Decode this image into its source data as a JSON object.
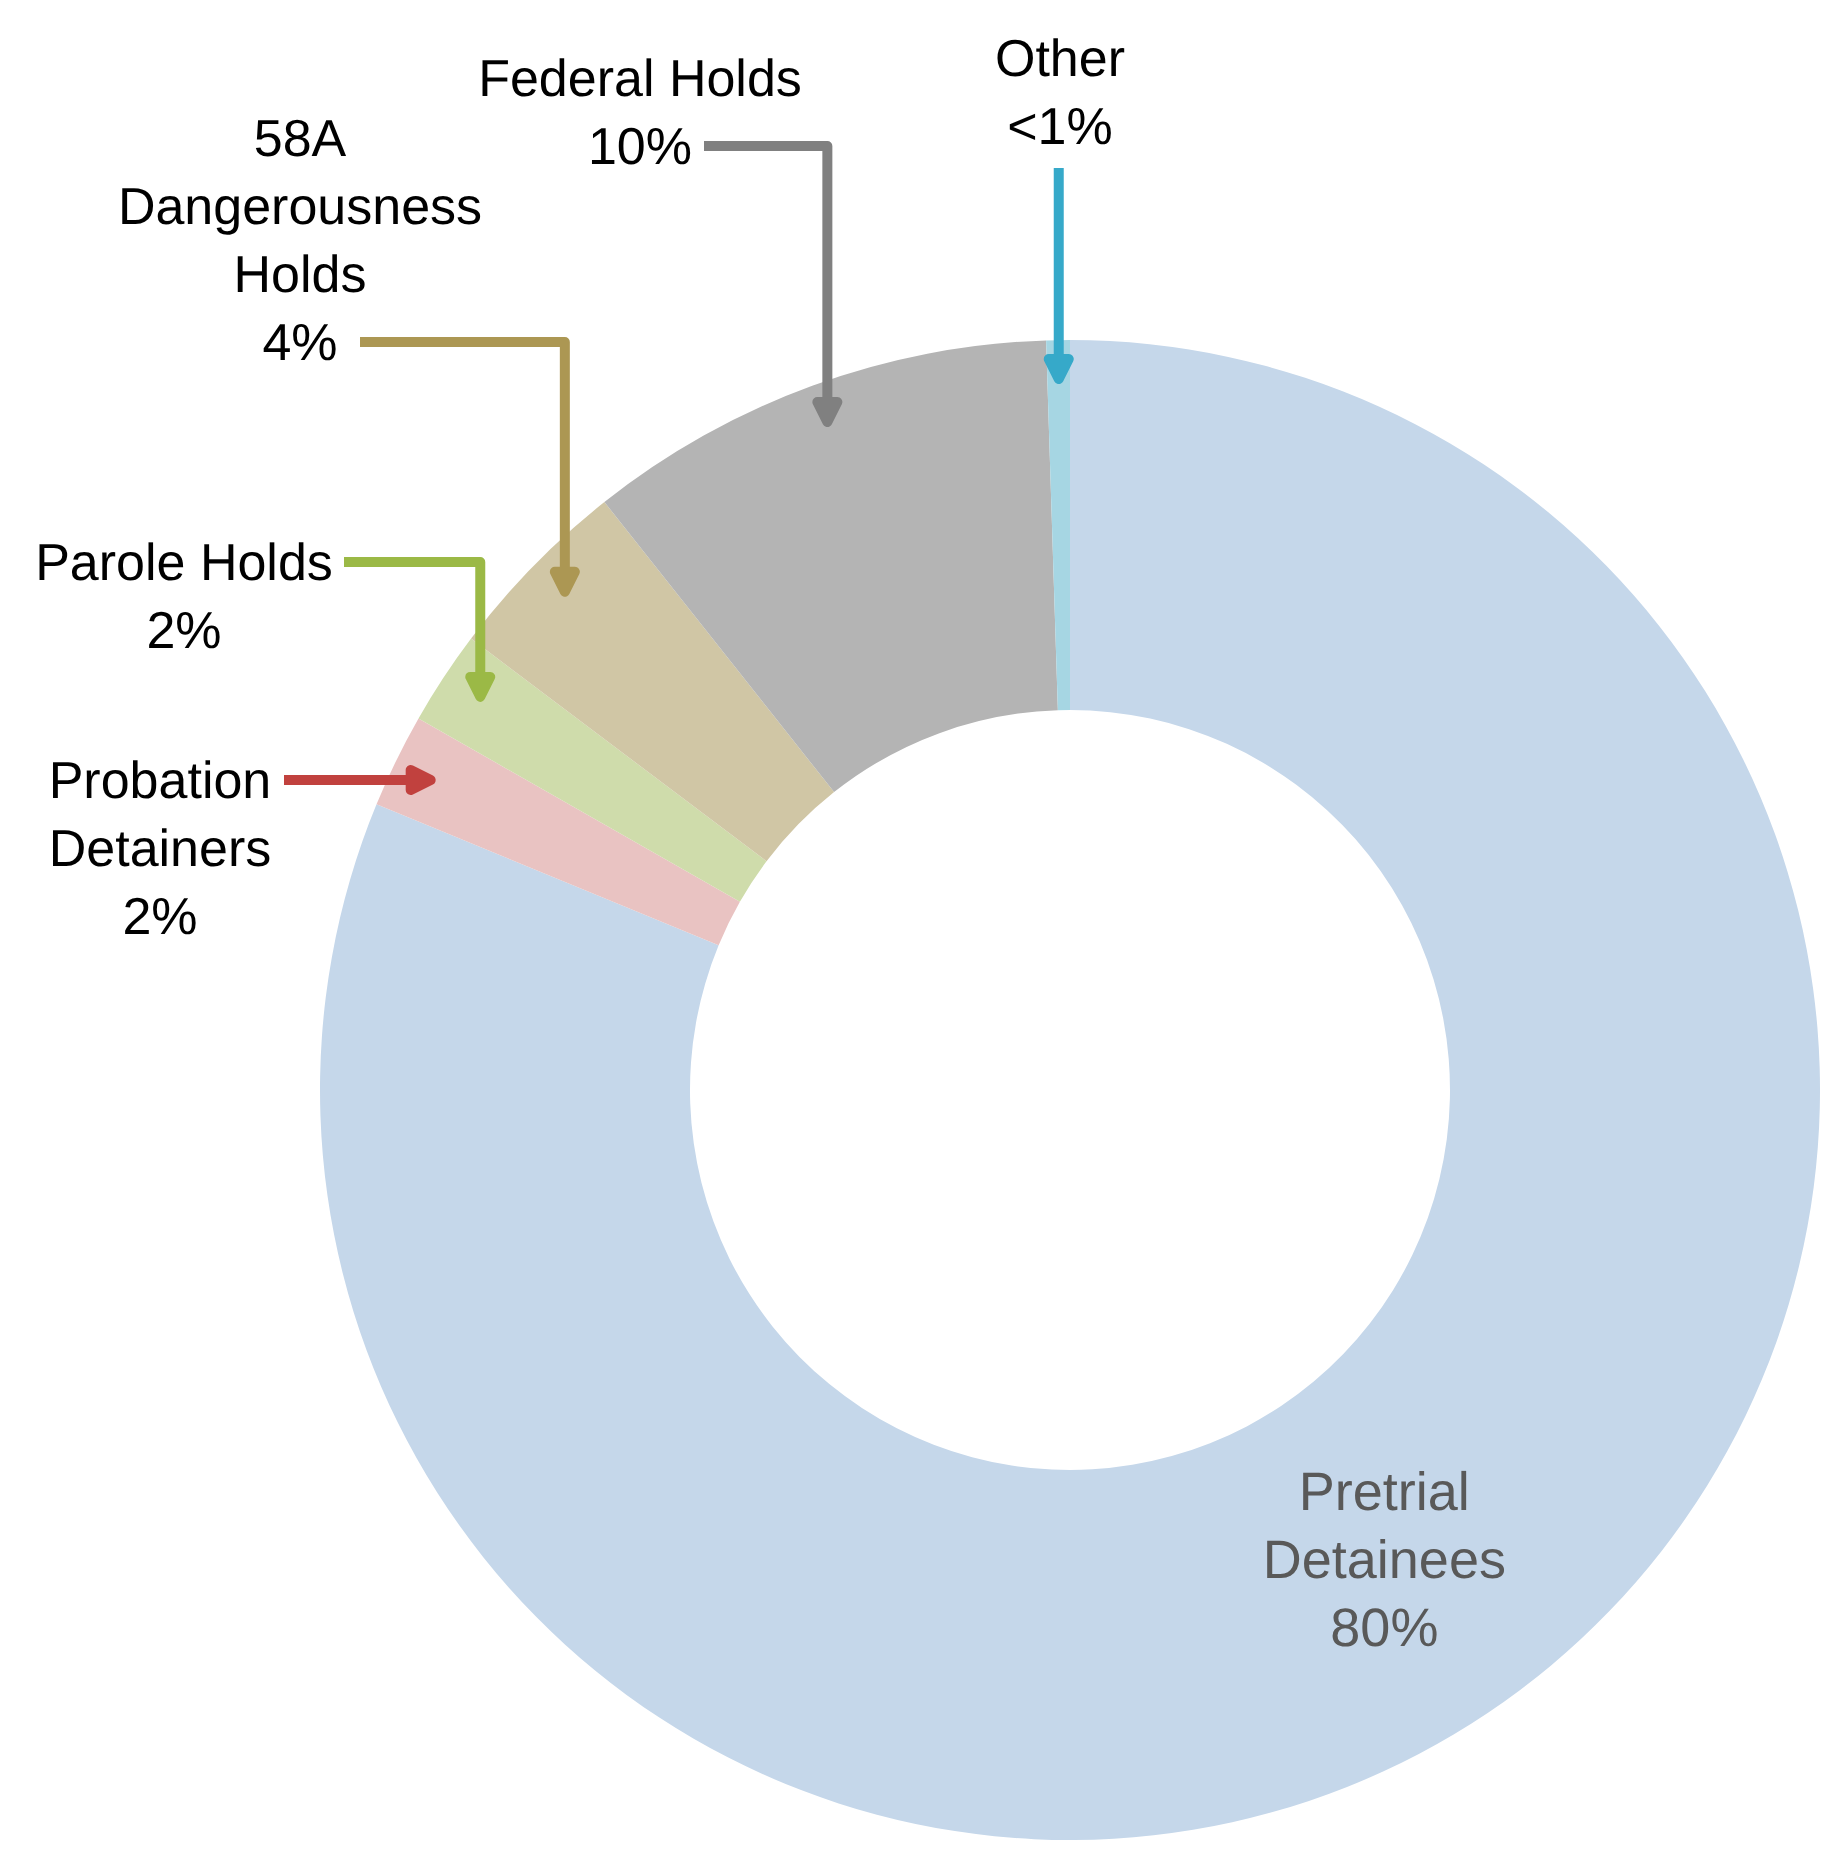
{
  "chart_data": {
    "type": "donut",
    "categories": [
      "Pretrial Detainees",
      "Probation Detainers",
      "Parole Holds",
      "58A Dangerousness Holds",
      "Federal Holds",
      "Other"
    ],
    "values": [
      80,
      2,
      2,
      4,
      10,
      0.5
    ],
    "value_labels": [
      "80%",
      "2%",
      "2%",
      "4%",
      "10%",
      "<1%"
    ],
    "colors": [
      "#c5d7ea",
      "#e9c3c2",
      "#cfdcab",
      "#d0c6a5",
      "#b4b4b4",
      "#a6d6e3"
    ]
  }
}
